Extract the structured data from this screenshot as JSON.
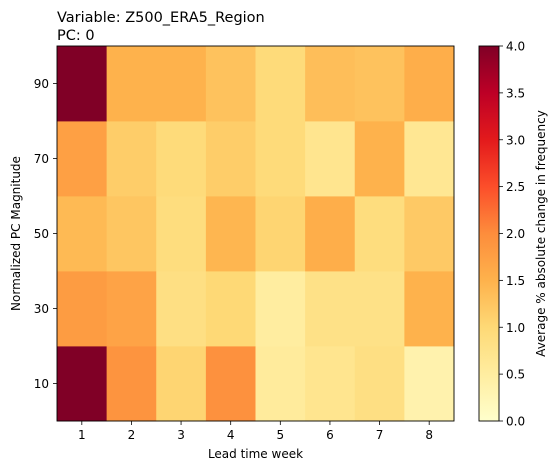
{
  "chart_data": {
    "type": "heatmap",
    "title_lines": [
      "Variable: Z500_ERA5_Region",
      "PC: 0"
    ],
    "xlabel": "Lead time week",
    "ylabel": "Normalized PC Magnitude",
    "x_categories": [
      "1",
      "2",
      "3",
      "4",
      "5",
      "6",
      "7",
      "8"
    ],
    "y_categories": [
      "10",
      "30",
      "50",
      "70",
      "90"
    ],
    "values": [
      [
        4.0,
        1.9,
        1.05,
        1.95,
        0.55,
        0.7,
        0.85,
        0.35
      ],
      [
        1.8,
        1.7,
        0.85,
        1.0,
        0.5,
        0.8,
        0.8,
        1.5
      ],
      [
        1.4,
        1.25,
        0.9,
        1.45,
        1.05,
        1.55,
        0.9,
        1.2
      ],
      [
        1.75,
        1.15,
        0.95,
        1.15,
        0.95,
        0.7,
        1.5,
        0.65
      ],
      [
        4.0,
        1.5,
        1.5,
        1.3,
        0.95,
        1.35,
        1.3,
        1.55
      ]
    ],
    "colorbar": {
      "label": "Average % absolute change in frequency",
      "range": [
        0.0,
        4.0
      ],
      "ticks": [
        "0.0",
        "0.5",
        "1.0",
        "1.5",
        "2.0",
        "2.5",
        "3.0",
        "3.5",
        "4.0"
      ],
      "colormap": "YlOrRd"
    }
  }
}
